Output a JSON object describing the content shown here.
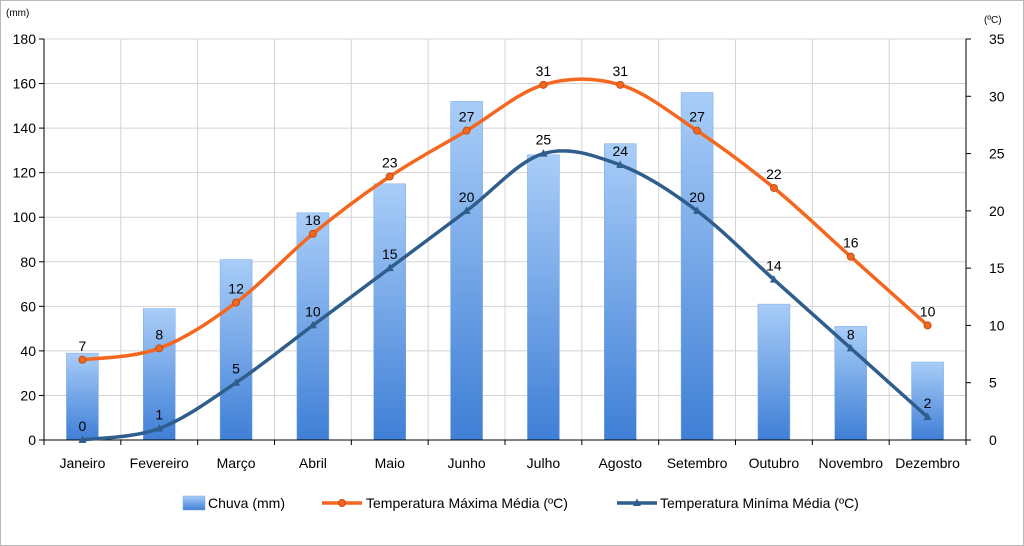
{
  "chart_data": {
    "type": "bar",
    "categories": [
      "Janeiro",
      "Fevereiro",
      "Março",
      "Abril",
      "Maio",
      "Junho",
      "Julho",
      "Agosto",
      "Setembro",
      "Outubro",
      "Novembro",
      "Dezembro"
    ],
    "y_left": {
      "unit": "(mm)",
      "min": 0,
      "max": 180,
      "step": 20
    },
    "y_right": {
      "unit": "(ºC)",
      "min": 0,
      "max": 35,
      "step": 5
    },
    "series": [
      {
        "name": "Chuva (mm)",
        "type": "bar",
        "axis": "left",
        "color": "#5b93dc",
        "values": [
          39,
          59,
          81,
          102,
          115,
          152,
          128,
          133,
          156,
          61,
          51,
          35
        ]
      },
      {
        "name": "Temperatura Máxima Média (ºC)",
        "type": "line",
        "axis": "right",
        "color": "#f5671f",
        "marker": "circle",
        "values": [
          7,
          8,
          12,
          18,
          23,
          27,
          31,
          31,
          27,
          22,
          16,
          10
        ]
      },
      {
        "name": "Temperatura Miníma Média (ºC)",
        "type": "line",
        "axis": "right",
        "color": "#2f5d8c",
        "marker": "triangle",
        "values": [
          0,
          1,
          5,
          10,
          15,
          20,
          25,
          24,
          20,
          14,
          8,
          2
        ]
      }
    ],
    "grid": true,
    "legend_position": "bottom"
  }
}
